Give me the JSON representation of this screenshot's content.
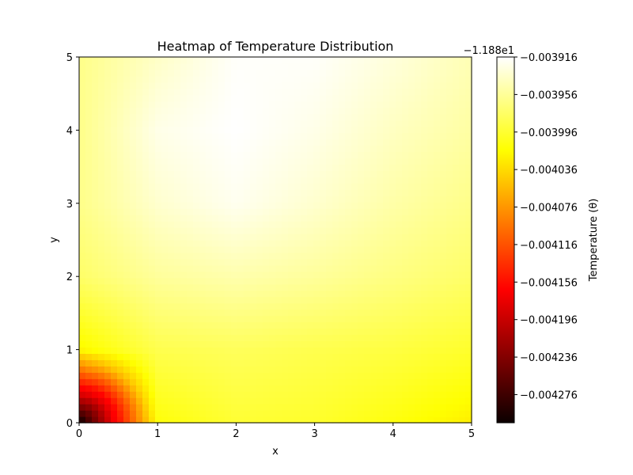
{
  "chart_data": {
    "type": "heatmap",
    "title": "Heatmap of Temperature Distribution",
    "xlabel": "x",
    "ylabel": "y",
    "xlim": [
      0,
      5
    ],
    "ylim": [
      0,
      5
    ],
    "x_ticks": [
      "0",
      "1",
      "2",
      "3",
      "4",
      "5"
    ],
    "y_ticks": [
      "0",
      "1",
      "2",
      "3",
      "4",
      "5"
    ],
    "colormap": "hot",
    "colorbar": {
      "label": "Temperature (θ)",
      "offset_text": "−1.188e1",
      "range": [
        -0.004306,
        -0.003916
      ],
      "ticks": [
        "−0.003916",
        "−0.003956",
        "−0.003996",
        "−0.004036",
        "−0.004076",
        "−0.004116",
        "−0.004156",
        "−0.004196",
        "−0.004236",
        "−0.004276"
      ]
    },
    "field_samples": {
      "x": [
        0,
        1,
        2,
        3,
        4,
        5
      ],
      "y": [
        0,
        1,
        2,
        3,
        4,
        5
      ],
      "z": [
        [
          -0.004306,
          -0.004012,
          -0.003995,
          -0.003998,
          -0.00401,
          -0.004025
        ],
        [
          -0.00402,
          -0.003985,
          -0.00398,
          -0.003985,
          -0.00399,
          -0.003998
        ],
        [
          -0.003975,
          -0.003955,
          -0.003948,
          -0.003955,
          -0.003965,
          -0.003975
        ],
        [
          -0.003962,
          -0.003935,
          -0.003922,
          -0.003935,
          -0.00395,
          -0.003962
        ],
        [
          -0.003962,
          -0.003925,
          -0.003916,
          -0.003925,
          -0.00394,
          -0.003952
        ],
        [
          -0.003962,
          -0.003938,
          -0.003918,
          -0.003918,
          -0.00393,
          -0.003945
        ]
      ]
    },
    "grid": false
  }
}
